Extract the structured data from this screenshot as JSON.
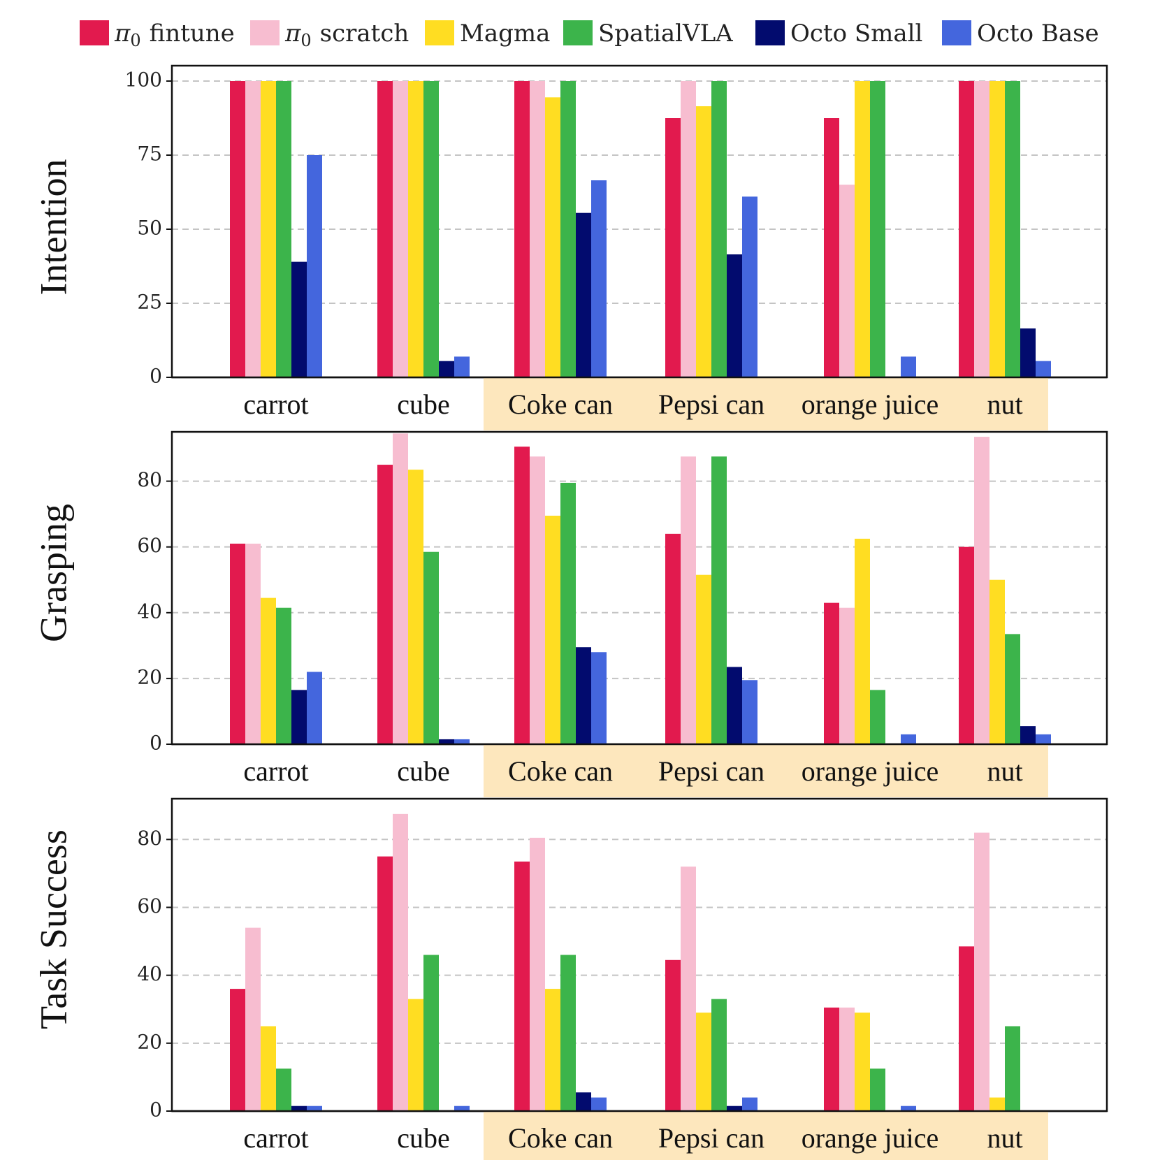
{
  "colors": {
    "pi0_fintune": "#e21a4e",
    "pi0_scratch": "#f7bdd0",
    "magma": "#ffdd22",
    "spatialvla": "#3cb44b",
    "octo_small": "#020b6e",
    "octo_base": "#4466dd",
    "highlight": "#fde7bd"
  },
  "legend": [
    {
      "label": "fintune",
      "prefix": "π",
      "sub": "0",
      "color_key": "pi0_fintune"
    },
    {
      "label": "scratch",
      "prefix": "π",
      "sub": "0",
      "color_key": "pi0_scratch"
    },
    {
      "label": "Magma",
      "prefix": "",
      "sub": "",
      "color_key": "magma"
    },
    {
      "label": "SpatialVLA",
      "prefix": "",
      "sub": "",
      "color_key": "spatialvla"
    },
    {
      "label": "Octo Small",
      "prefix": "",
      "sub": "",
      "color_key": "octo_small"
    },
    {
      "label": "Octo Base",
      "prefix": "",
      "sub": "",
      "color_key": "octo_base"
    }
  ],
  "chart_data": [
    {
      "type": "bar",
      "ylabel": "Intention",
      "ylim": [
        0,
        100
      ],
      "yticks": [
        0,
        25,
        50,
        75,
        100
      ],
      "grid": true,
      "categories": [
        "carrot",
        "cube",
        "Coke can",
        "Pepsi can",
        "orange juice",
        "nut"
      ],
      "highlighted_categories": [
        "Coke can",
        "Pepsi can",
        "orange juice",
        "nut"
      ],
      "series": [
        {
          "name": "π0 fintune",
          "values": [
            100,
            100,
            100,
            87.5,
            87.5,
            100
          ]
        },
        {
          "name": "π0 scratch",
          "values": [
            100,
            100,
            100,
            100,
            65,
            100
          ]
        },
        {
          "name": "Magma",
          "values": [
            100,
            100,
            94.5,
            91.5,
            100,
            100
          ]
        },
        {
          "name": "SpatialVLA",
          "values": [
            100,
            100,
            100,
            100,
            100,
            100
          ]
        },
        {
          "name": "Octo Small",
          "values": [
            39,
            5.5,
            55.5,
            41.5,
            0,
            16.5
          ]
        },
        {
          "name": "Octo Base",
          "values": [
            75,
            7,
            66.5,
            61,
            7,
            5.5
          ]
        }
      ]
    },
    {
      "type": "bar",
      "ylabel": "Grasping",
      "ylim": [
        0,
        95
      ],
      "yticks": [
        0,
        20,
        40,
        60,
        80
      ],
      "grid": true,
      "categories": [
        "carrot",
        "cube",
        "Coke can",
        "Pepsi can",
        "orange juice",
        "nut"
      ],
      "highlighted_categories": [
        "Coke can",
        "Pepsi can",
        "orange juice",
        "nut"
      ],
      "series": [
        {
          "name": "π0 fintune",
          "values": [
            61,
            85,
            90.5,
            64,
            43,
            60
          ]
        },
        {
          "name": "π0 scratch",
          "values": [
            61,
            94.5,
            87.5,
            87.5,
            41.5,
            93.5
          ]
        },
        {
          "name": "Magma",
          "values": [
            44.5,
            83.5,
            69.5,
            51.5,
            62.5,
            50
          ]
        },
        {
          "name": "SpatialVLA",
          "values": [
            41.5,
            58.5,
            79.5,
            87.5,
            16.5,
            33.5
          ]
        },
        {
          "name": "Octo Small",
          "values": [
            16.5,
            1.5,
            29.5,
            23.5,
            0,
            5.5
          ]
        },
        {
          "name": "Octo Base",
          "values": [
            22,
            1.5,
            28,
            19.5,
            3,
            3
          ]
        }
      ]
    },
    {
      "type": "bar",
      "ylabel": "Task Success",
      "ylim": [
        0,
        92
      ],
      "yticks": [
        0,
        20,
        40,
        60,
        80
      ],
      "grid": true,
      "categories": [
        "carrot",
        "cube",
        "Coke can",
        "Pepsi can",
        "orange juice",
        "nut"
      ],
      "highlighted_categories": [
        "Coke can",
        "Pepsi can",
        "orange juice",
        "nut"
      ],
      "series": [
        {
          "name": "π0 fintune",
          "values": [
            36,
            75,
            73.5,
            44.5,
            30.5,
            48.5
          ]
        },
        {
          "name": "π0 scratch",
          "values": [
            54,
            87.5,
            80.5,
            72,
            30.5,
            82
          ]
        },
        {
          "name": "Magma",
          "values": [
            25,
            33,
            36,
            29,
            29,
            4
          ]
        },
        {
          "name": "SpatialVLA",
          "values": [
            12.5,
            46,
            46,
            33,
            12.5,
            25
          ]
        },
        {
          "name": "Octo Small",
          "values": [
            1.5,
            0,
            5.5,
            1.5,
            0,
            0
          ]
        },
        {
          "name": "Octo Base",
          "values": [
            1.5,
            1.5,
            4,
            4,
            1.5,
            0
          ]
        }
      ]
    }
  ]
}
